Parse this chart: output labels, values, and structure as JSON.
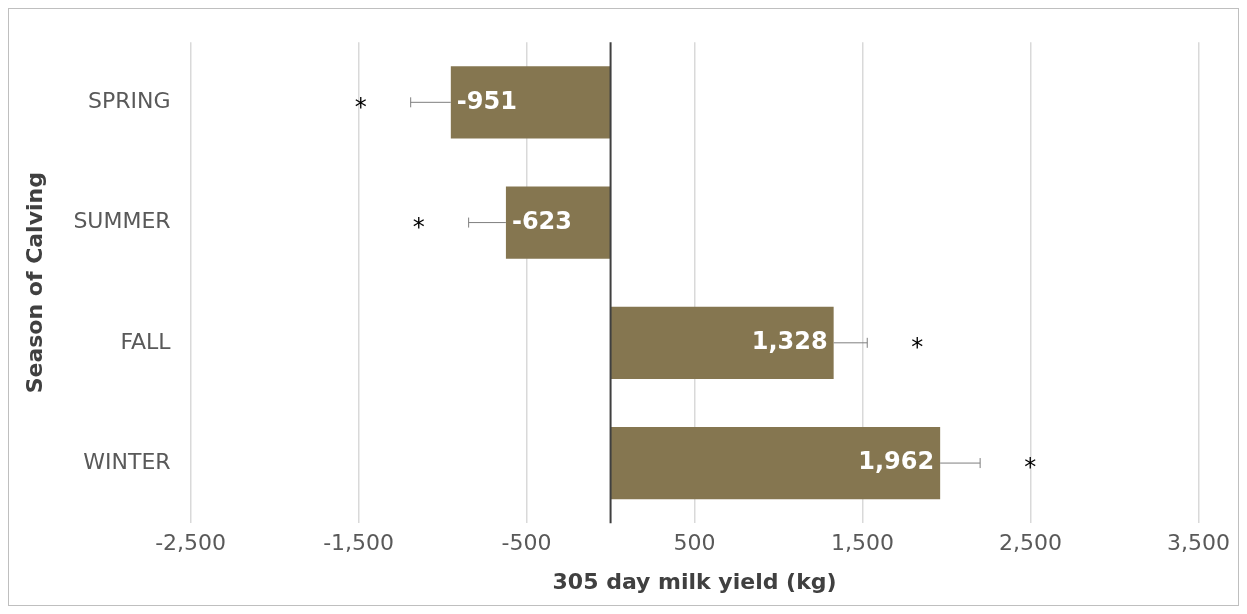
{
  "chart_data": {
    "type": "bar",
    "orientation": "horizontal",
    "xlabel": "305 day milk yield (kg)",
    "ylabel": "Season of Calving",
    "categories": [
      "SPRING",
      "SUMMER",
      "FALL",
      "WINTER"
    ],
    "values": [
      -951,
      -623,
      1328,
      1962
    ],
    "color": "#857650",
    "errors": [
      [
        -1190,
        -951
      ],
      [
        -845,
        -623
      ],
      [
        1328,
        1528
      ],
      [
        1962,
        2200
      ]
    ],
    "value_labels": [
      "-951",
      "-623",
      "1,328",
      "1,962"
    ],
    "xlim": [
      -2500,
      3500
    ],
    "xticks": [
      {
        "value": -2500,
        "label": "-2,500"
      },
      {
        "value": -1500,
        "label": "-1,500"
      },
      -500,
      500,
      {
        "value": 1500,
        "label": "1,500"
      },
      {
        "value": 2500,
        "label": "2,500"
      },
      {
        "value": 3500,
        "label": "3,500"
      }
    ],
    "grid": "x",
    "ref_lines": [
      {
        "axis": "x",
        "value": 0,
        "color": "#404040"
      }
    ],
    "annotations": [
      "*",
      "*",
      "*",
      "*"
    ]
  }
}
